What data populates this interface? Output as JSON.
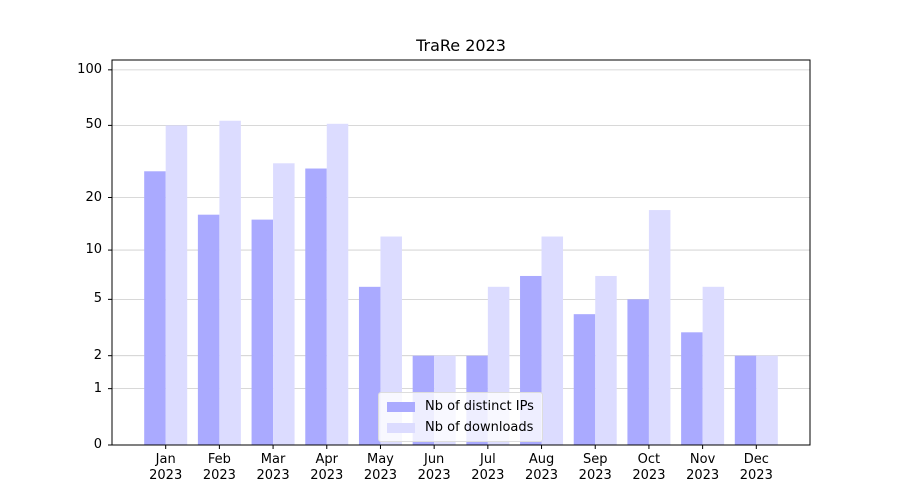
{
  "chart_data": {
    "type": "bar",
    "title": "TraRe 2023",
    "categories": [
      "Jan 2023",
      "Feb 2023",
      "Mar 2023",
      "Apr 2023",
      "May 2023",
      "Jun 2023",
      "Jul 2023",
      "Aug 2023",
      "Sep 2023",
      "Oct 2023",
      "Nov 2023",
      "Dec 2023"
    ],
    "series": [
      {
        "name": "Nb of distinct IPs",
        "color": "#aaaaff",
        "values": [
          28,
          16,
          15,
          29,
          6,
          2,
          2,
          7,
          4,
          5,
          3,
          2
        ]
      },
      {
        "name": "Nb of downloads",
        "color": "#dcdcff",
        "values": [
          50,
          53,
          31,
          51,
          12,
          2,
          6,
          12,
          7,
          17,
          6,
          2
        ]
      }
    ],
    "yscale": "log1p",
    "ylim": [
      0,
      113
    ],
    "yticks": [
      0,
      1,
      2,
      5,
      10,
      20,
      50,
      100
    ],
    "grid": true,
    "legend": "lower center"
  }
}
